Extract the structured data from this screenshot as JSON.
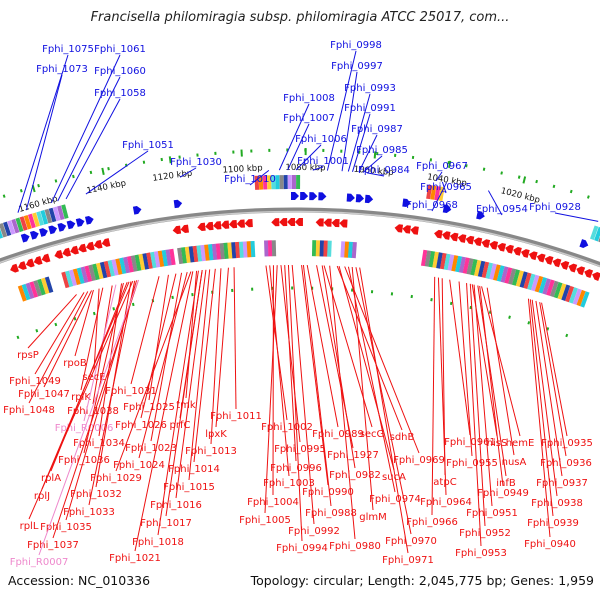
{
  "header": {
    "title": "Francisella philomiragia subsp. philomiragia ATCC 25017, com..."
  },
  "footer": {
    "accession": "Accession: NC_010336",
    "summary": "Topology: circular; Length: 2,045,775 bp; Genes: 1,959"
  },
  "colors": {
    "forward": "#1010e0",
    "reverse": "#ee1111",
    "rna": "#ee88cc",
    "ticks": "#22aa22",
    "backbone": "#888888"
  },
  "chart_data": {
    "type": "circular-genome-map",
    "tick_labels": [
      "1160 kbp",
      "1140 kbp",
      "1120 kbp",
      "1100 kbp",
      "1080 kbp",
      "1060 kbp",
      "1040 kbp",
      "1020 kbp"
    ],
    "forward_genes": [
      "Fphi_1075",
      "Fphi_1073",
      "Fphi_1061",
      "Fphi_1060",
      "Fphi_1058",
      "Fphi_1051",
      "Fphi_1030",
      "Fphi_1010",
      "Fphi_1008",
      "Fphi_1007",
      "Fphi_1006",
      "Fphi_1001",
      "Fphi_0998",
      "Fphi_0997",
      "Fphi_0993",
      "Fphi_0991",
      "Fphi_0987",
      "Fphi_0985",
      "Fphi_0984",
      "Fphi_0967",
      "Fphi_0965",
      "Fphi_0968",
      "Fphi_0954",
      "Fphi_0928"
    ],
    "reverse_genes": [
      "rpsP",
      "rpoB",
      "Fphi_1049",
      "secE",
      "Fphi_1047",
      "rplK",
      "Fphi_1048",
      "Fphi_1038",
      "Fphi_1031",
      "Fphi_1025",
      "tmk",
      "Fphi_1026",
      "prfC",
      "Fphi_1011",
      "Fphi_R0006",
      "lpxK",
      "Fphi_1034",
      "Fphi_1023",
      "Fphi_1013",
      "Fphi_1036",
      "Fphi_1024",
      "Fphi_1014",
      "rplA",
      "Fphi_1029",
      "Fphi_1015",
      "rplJ",
      "Fphi_1032",
      "Fphi_1016",
      "Fphi_1033",
      "Fphi_1017",
      "rplL",
      "Fphi_1035",
      "Fphi_1018",
      "Fphi_1037",
      "Fphi_1021",
      "Fphi_R0007",
      "Fphi_1002",
      "Fphi_0995",
      "Fphi_0996",
      "Fphi_1003",
      "Fphi_1004",
      "Fphi_1005",
      "Fphi_0989",
      "Fphi_1927",
      "Fphi_0990",
      "Fphi_0988",
      "Fphi_0992",
      "Fphi_0994",
      "secG",
      "Fphi_0982",
      "Fphi_0980",
      "sdhB",
      "Fphi_0969",
      "sucA",
      "Fphi_0974",
      "glmM",
      "Fphi_0970",
      "Fphi_0971",
      "Fphi_0961",
      "Fphi_0964",
      "Fphi_0966",
      "atpC",
      "Fphi_0955",
      "hisS",
      "hemE",
      "nusA",
      "infB",
      "Fphi_0949",
      "Fphi_0951",
      "Fphi_0952",
      "Fphi_0953",
      "Fphi_0935",
      "Fphi_0936",
      "Fphi_0937",
      "Fphi_0938",
      "Fphi_0939",
      "Fphi_0940"
    ]
  }
}
